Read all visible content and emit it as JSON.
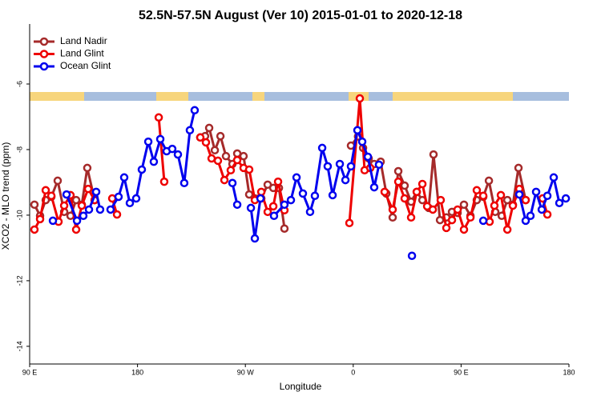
{
  "chart_data": {
    "type": "line",
    "title": "52.5N-57.5N August (Ver 10)   2015-01-01 to 2020-12-18",
    "x_label": "Longitude",
    "y_label": "XCO2 - MLO trend (ppm)",
    "xlim": [
      -270,
      180
    ],
    "xticks": [
      {
        "value": -270,
        "label": "90 E"
      },
      {
        "value": -180,
        "label": "180"
      },
      {
        "value": -90,
        "label": "90 W"
      },
      0,
      {
        "value": 90,
        "label": "90 E"
      },
      180
    ],
    "ylim": [
      -14.54,
      -4.17
    ],
    "yticks": [
      -6,
      -8,
      -10,
      -12,
      -14
    ],
    "legend": "top-left",
    "series": [
      {
        "name": "Land Nadir",
        "color": "#a52a2a",
        "x": [
          -266.0,
          -261.3,
          -256.6,
          -251.9,
          -246.6,
          -241.2,
          -235.9,
          -231.2,
          -226.5,
          -221.9,
          -215.8,
          null,
          -127.6,
          -123.6,
          -120.2,
          -115.5,
          -110.8,
          -106.2,
          -100.8,
          -96.8,
          -91.5,
          -86.8,
          -82.1,
          -76.7,
          -71.4,
          -66.7,
          -62.0,
          -57.4,
          null,
          -1.9,
          4.0,
          8.2,
          12.9,
          17.5,
          22.9,
          27.6,
          32.9,
          37.6,
          42.9,
          48.3,
          53.0,
          57.7,
          63.0,
          67.0,
          72.4,
          77.7,
          82.4,
          87.1,
          92.4,
          97.8,
          103.1,
          108.5,
          113.2,
          118.5,
          123.9,
          128.6,
          133.2,
          137.9,
          143.9
        ],
        "values": [
          -9.68,
          -10.02,
          -9.54,
          -9.44,
          -8.95,
          -9.9,
          -10.02,
          -9.54,
          -9.68,
          -8.56,
          -9.54,
          null,
          -7.63,
          -7.59,
          -7.34,
          -8.02,
          -7.59,
          -8.2,
          -8.44,
          -8.12,
          -8.2,
          -9.37,
          -9.49,
          -9.49,
          -9.07,
          -9.17,
          -9.17,
          -10.41,
          null,
          -7.88,
          -7.6,
          -7.95,
          -8.27,
          -8.44,
          -8.37,
          -9.34,
          -10.07,
          -8.66,
          -9.1,
          -9.59,
          -9.29,
          -9.54,
          -9.78,
          -8.15,
          -10.15,
          -10.07,
          -9.9,
          -9.93,
          -9.68,
          -10.02,
          -9.54,
          -9.44,
          -8.95,
          -9.9,
          -10.02,
          -9.54,
          -9.68,
          -8.56,
          -9.54
        ]
      },
      {
        "name": "Land Glint",
        "color": "#ee0000",
        "x": [
          -266.0,
          -261.3,
          -256.6,
          -251.9,
          -245.9,
          -241.2,
          -235.9,
          -231.2,
          -226.5,
          -221.2,
          -215.8,
          null,
          -201.1,
          -197.1,
          null,
          -162.3,
          -157.7,
          null,
          -127.6,
          -122.9,
          -118.2,
          -112.9,
          -107.5,
          -102.2,
          -96.8,
          -91.5,
          -86.8,
          -82.1,
          -76.7,
          -71.4,
          -66.7,
          -62.7,
          -57.4,
          null,
          -3.2,
          5.5,
          9.5,
          14.2,
          null,
          26.2,
          32.9,
          37.6,
          42.9,
          48.3,
          53.0,
          57.7,
          61.7,
          66.4,
          73.0,
          77.7,
          82.4,
          87.1,
          92.4,
          97.8,
          103.1,
          108.5,
          113.8,
          117.8,
          123.2,
          128.6,
          133.2,
          138.6,
          143.9,
          null,
          158.0,
          162.0
        ],
        "values": [
          -10.44,
          -10.12,
          -9.24,
          -9.41,
          -10.2,
          -9.71,
          -9.39,
          -10.44,
          -9.71,
          -9.2,
          -9.54,
          null,
          -9.49,
          -9.98,
          null,
          -7.02,
          -8.98,
          null,
          -7.63,
          -7.78,
          -8.27,
          -8.34,
          -8.93,
          -8.63,
          -8.32,
          -8.56,
          -8.61,
          -9.54,
          -9.29,
          -9.9,
          -9.73,
          -8.98,
          -9.85,
          null,
          -10.24,
          -6.44,
          -8.63,
          -8.56,
          null,
          -9.29,
          -9.83,
          -8.98,
          -9.49,
          -10.07,
          -9.29,
          -9.05,
          -9.73,
          -9.83,
          -9.54,
          -10.39,
          -10.15,
          -9.83,
          -10.44,
          -10.07,
          -9.24,
          -9.41,
          -10.2,
          -9.71,
          -9.39,
          -10.44,
          -9.71,
          -9.2,
          -9.54,
          null,
          -9.49,
          -9.98
        ]
      },
      {
        "name": "Ocean Glint",
        "color": "#0000ee",
        "x": [
          -250.6,
          null,
          -239.2,
          -230.5,
          -225.2,
          -220.5,
          -214.5,
          -211.2,
          null,
          -202.5,
          -195.8,
          -191.1,
          -186.4,
          -181.1,
          -176.4,
          -171.0,
          -166.4,
          -161.0,
          -155.7,
          -151.0,
          -146.3,
          -141.0,
          -136.3,
          -132.3,
          null,
          -100.8,
          -96.8,
          null,
          -85.4,
          -82.1,
          -77.4,
          null,
          -66.1,
          -57.4,
          -52.0,
          -47.3,
          -42.0,
          -36.0,
          -32.0,
          -25.9,
          -21.3,
          -17.2,
          -11.2,
          -6.5,
          -1.9,
          3.5,
          7.5,
          12.2,
          17.5,
          21.5,
          null,
          49.0,
          null,
          108.5,
          null,
          138.6,
          143.9,
          147.9,
          152.6,
          157.3,
          162.0,
          167.3,
          172.0,
          177.4
        ],
        "values": [
          -10.17,
          null,
          -9.37,
          -10.17,
          -10.02,
          -9.83,
          -9.29,
          -9.83,
          null,
          -9.83,
          -9.44,
          -8.85,
          -9.63,
          -9.49,
          -8.61,
          -7.76,
          -8.37,
          -7.68,
          -8.05,
          -7.98,
          -8.15,
          -9.02,
          -7.41,
          -6.8,
          null,
          -9.02,
          -9.68,
          null,
          -9.78,
          -10.71,
          -9.49,
          null,
          -10.02,
          -9.68,
          -9.54,
          -8.85,
          -9.34,
          -9.9,
          -9.41,
          -7.95,
          -8.51,
          -9.39,
          -8.44,
          -8.93,
          -8.51,
          -7.41,
          -7.76,
          -8.22,
          -9.15,
          -8.46,
          null,
          -11.24,
          null,
          -10.17,
          null,
          -9.37,
          -10.17,
          -10.02,
          -9.29,
          -9.83,
          -9.41,
          -8.85,
          -9.63,
          -9.49
        ]
      }
    ]
  }
}
